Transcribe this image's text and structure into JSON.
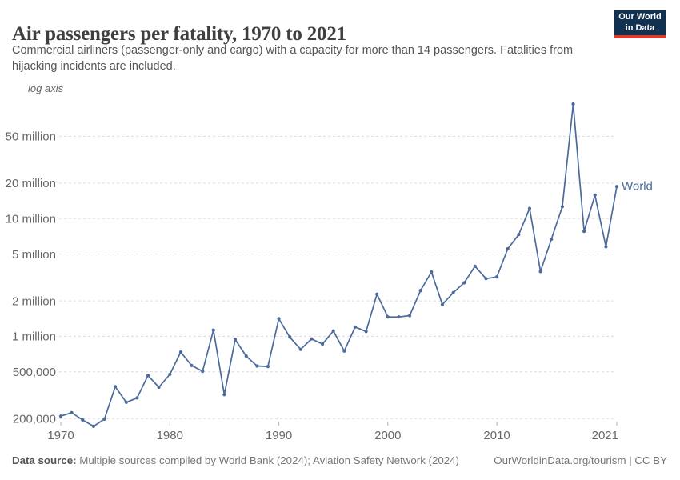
{
  "header": {
    "title": "Air passengers per fatality, 1970 to 2021",
    "subtitle_line1": "Commercial airliners (passenger-only and cargo) with a capacity for more than 14 passengers. Fatalities from",
    "subtitle_line2": "hijacking incidents are included.",
    "logo_line1": "Our World",
    "logo_line2": "in Data"
  },
  "chart_data": {
    "type": "line",
    "title": "Air passengers per fatality, 1970 to 2021",
    "scale_note": "log axis",
    "x_axis": {
      "range": [
        1970,
        2021
      ],
      "ticks": [
        1970,
        1980,
        1990,
        2000,
        2010,
        2021
      ]
    },
    "y_axis": {
      "scale": "log",
      "grid": "dashed",
      "ticks": [
        {
          "value": 200000,
          "label": "200,000"
        },
        {
          "value": 500000,
          "label": "500,000"
        },
        {
          "value": 1000000,
          "label": "1 million"
        },
        {
          "value": 2000000,
          "label": "2 million"
        },
        {
          "value": 5000000,
          "label": "5 million"
        },
        {
          "value": 10000000,
          "label": "10 million"
        },
        {
          "value": 20000000,
          "label": "20 million"
        },
        {
          "value": 50000000,
          "label": "50 million"
        }
      ]
    },
    "series": [
      {
        "name": "World",
        "color": "#4C6A9C",
        "years": [
          1970,
          1971,
          1972,
          1973,
          1974,
          1975,
          1976,
          1977,
          1978,
          1979,
          1980,
          1981,
          1982,
          1983,
          1984,
          1985,
          1986,
          1987,
          1988,
          1989,
          1990,
          1991,
          1992,
          1993,
          1994,
          1995,
          1996,
          1997,
          1998,
          1999,
          2000,
          2001,
          2002,
          2003,
          2004,
          2005,
          2006,
          2007,
          2008,
          2009,
          2010,
          2011,
          2012,
          2013,
          2014,
          2015,
          2016,
          2017,
          2018,
          2019,
          2020,
          2021
        ],
        "values": [
          210000,
          225000,
          195000,
          172000,
          198000,
          374000,
          275000,
          300000,
          465000,
          370000,
          475000,
          735000,
          565000,
          505000,
          1130000,
          320000,
          940000,
          680000,
          560000,
          555000,
          1410000,
          985000,
          775000,
          950000,
          860000,
          1110000,
          750000,
          1200000,
          1100000,
          2280000,
          1460000,
          1460000,
          1500000,
          2450000,
          3520000,
          1860000,
          2350000,
          2850000,
          3940000,
          3090000,
          3200000,
          5540000,
          7300000,
          12200000,
          3550000,
          6680000,
          12600000,
          94000000,
          7800000,
          15800000,
          5770000,
          18700000
        ]
      }
    ],
    "legend": {
      "position": "end-of-line",
      "label": "World"
    }
  },
  "footer": {
    "source_label": "Data source:",
    "source_text": " Multiple sources compiled by World Bank (2024); Aviation Safety Network (2024)",
    "credit": "OurWorldinData.org/tourism | CC BY"
  },
  "colors": {
    "line": "#4C6A9C",
    "grid": "#dcdcdc",
    "tick": "#b3b3b3",
    "axis_text": "#666666",
    "logo_bg": "#12304f",
    "logo_accent": "#dc3a2f"
  }
}
